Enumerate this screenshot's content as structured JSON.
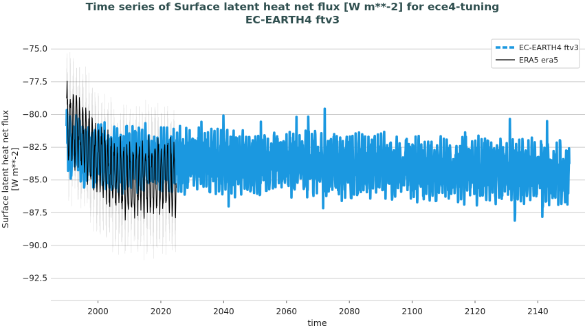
{
  "title_line1": "Time series of Surface latent heat net flux [W m**-2] for ece4-tuning",
  "title_line2": "EC-EARTH4 ftv3",
  "chart_data": {
    "type": "line",
    "xlabel": "time",
    "ylabel_line1": "Surface latent heat net flux",
    "ylabel_line2": "[W m**-2]",
    "xlim": [
      1985,
      2155
    ],
    "ylim": [
      -94.2,
      -74.2
    ],
    "xticks": [
      2000,
      2020,
      2040,
      2060,
      2080,
      2100,
      2120,
      2140
    ],
    "xtick_labels": [
      "2000",
      "2020",
      "2040",
      "2060",
      "2080",
      "2100",
      "2120",
      "2140"
    ],
    "yticks": [
      -75.0,
      -77.5,
      -80.0,
      -82.5,
      -85.0,
      -87.5,
      -90.0,
      -92.5
    ],
    "ytick_labels": [
      "−75.0",
      "−77.5",
      "−80.0",
      "−82.5",
      "−85.0",
      "−87.5",
      "−90.0",
      "−92.5"
    ],
    "grid": "horizontal",
    "legend_position": "top-right",
    "series": [
      {
        "name": "EC-EARTH4 ftv3",
        "color": "#1b98e0",
        "style": "dashed-thick",
        "x_start": 1990,
        "x_end": 2150,
        "trend_x": [
          1990,
          1995,
          2000,
          2010,
          2020,
          2030,
          2050,
          2070,
          2090,
          2110,
          2130,
          2150
        ],
        "trend_y": [
          -82.2,
          -82.9,
          -83.2,
          -83.3,
          -83.4,
          -83.5,
          -83.7,
          -83.9,
          -84.0,
          -84.2,
          -84.3,
          -84.4
        ],
        "range_min": -88.1,
        "range_max": -79.5
      },
      {
        "name": "ERA5 era5",
        "color": "#000000",
        "style": "solid",
        "x_start": 1990,
        "x_end": 2024.9,
        "trend_x": [
          1990,
          1995,
          2000,
          2005,
          2010,
          2015,
          2020,
          2024.9
        ],
        "trend_y": [
          -80.6,
          -81.6,
          -83.5,
          -84.6,
          -85.0,
          -84.8,
          -84.6,
          -85.0
        ],
        "range_min": -90.9,
        "range_max": -77.4
      }
    ]
  }
}
